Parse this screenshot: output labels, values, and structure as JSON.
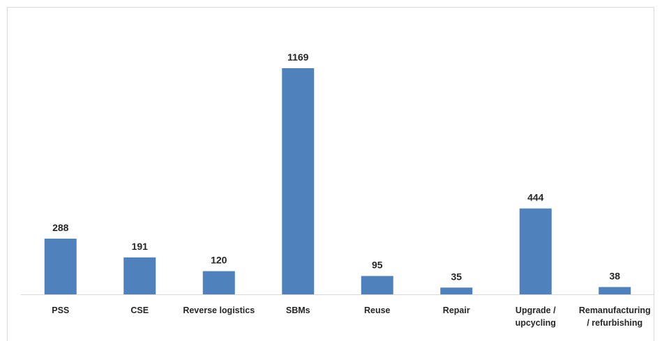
{
  "chart_data": {
    "type": "bar",
    "categories": [
      [
        "PSS"
      ],
      [
        "CSE"
      ],
      [
        "Reverse logistics"
      ],
      [
        "SBMs"
      ],
      [
        "Reuse"
      ],
      [
        "Repair"
      ],
      [
        "Upgrade /",
        "upcycling"
      ],
      [
        "Remanufacturing",
        "/ refurbishing"
      ]
    ],
    "values": [
      288,
      191,
      120,
      1169,
      95,
      35,
      444,
      38
    ],
    "data_labels": [
      "288",
      "191",
      "120",
      "1169",
      "95",
      "35",
      "444",
      "38"
    ],
    "ylim": [
      0,
      1169
    ],
    "bar_color": "#4f81bd",
    "axis_color": "#d9d9d9",
    "grid": false,
    "legend": false
  }
}
